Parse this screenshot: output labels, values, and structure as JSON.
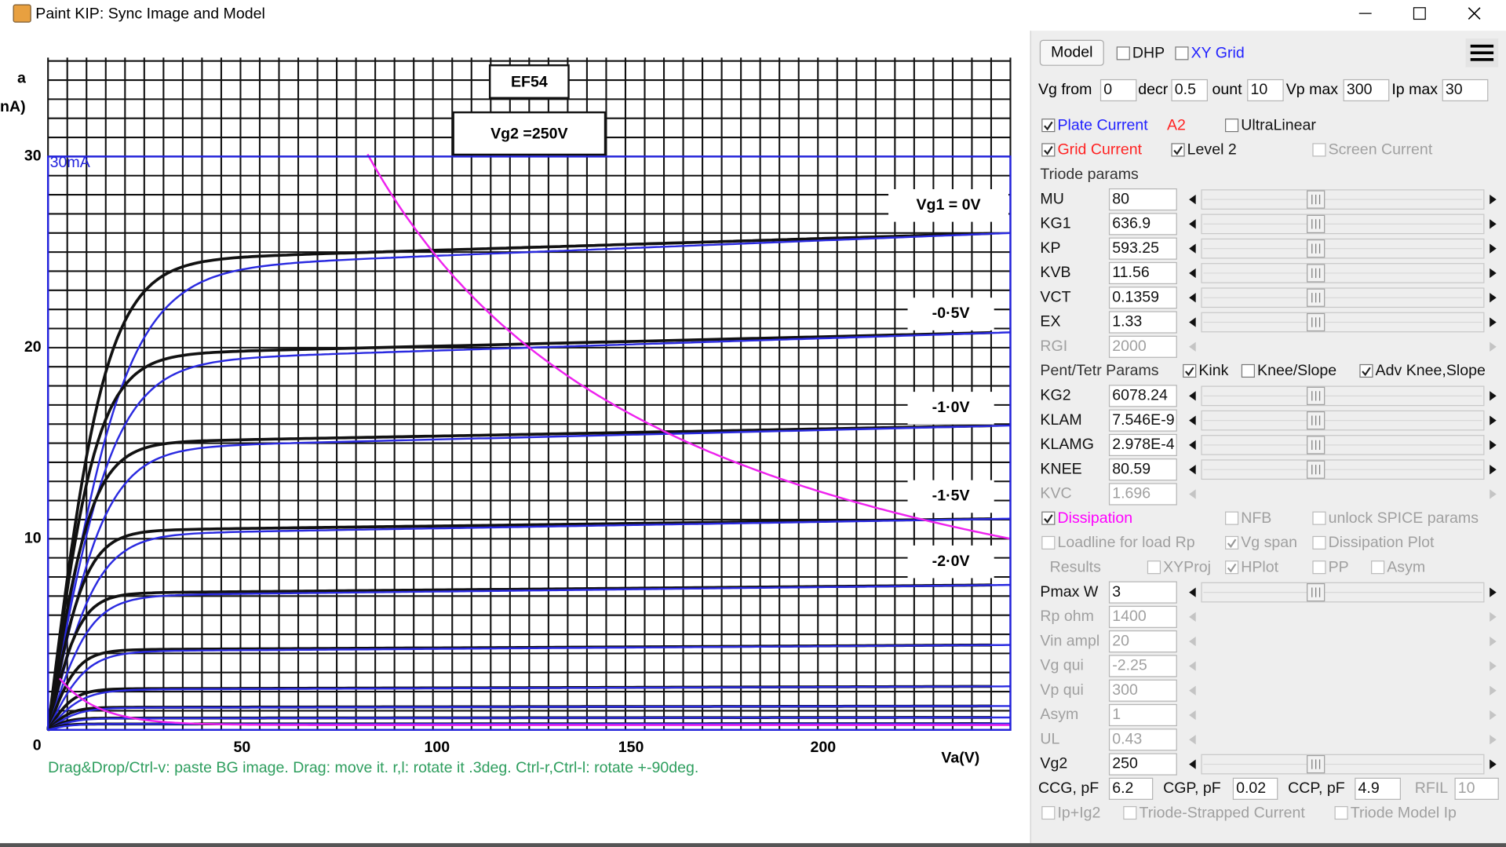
{
  "window": {
    "title": "Paint KIP: Sync Image and Model"
  },
  "image": {
    "tube": "EF54",
    "screen_voltage": "Vg2 =250V",
    "curve_labels": [
      "Vg1 = 0V",
      "-0·5V",
      "-1·0V",
      "-1·5V",
      "-2·0V"
    ],
    "y_axis_title": [
      "a",
      "nA)"
    ],
    "y_tick_labels": [
      "30",
      "20",
      "10",
      "0"
    ],
    "x_tick_labels": [
      "50",
      "100",
      "150",
      "200"
    ],
    "x_axis_title": "Va(V)"
  },
  "overlay": {
    "scale_label": "30mA"
  },
  "hint": "Drag&Drop/Ctrl-v: paste BG image. Drag: move it. r,l: rotate it .3deg. Ctrl-r,Ctrl-l: rotate +-90deg.",
  "panel": {
    "toolbar": {
      "model": "Model",
      "checks": [
        {
          "label": "DHP",
          "checked": false
        },
        {
          "label": "XY Grid",
          "checked": false,
          "color": "#2222ff"
        }
      ]
    },
    "range": [
      {
        "label": "Vg from",
        "value": "0"
      },
      {
        "label": "decr",
        "value": "0.5"
      },
      {
        "label": "ount",
        "value": "10"
      },
      {
        "label": "Vp max",
        "value": "300"
      },
      {
        "label": "Ip max",
        "value": "30"
      }
    ],
    "rows": [
      {
        "checks": [
          {
            "label": "Plate Current",
            "checked": true,
            "color": "#2222ff"
          },
          {
            "label": "A2",
            "color": "#ff2222"
          },
          {
            "label": "UltraLinear",
            "checked": false
          }
        ]
      },
      {
        "checks": [
          {
            "label": "Grid Current",
            "checked": true,
            "color": "#ff2222"
          },
          {
            "label": "Level 2",
            "checked": true
          },
          {
            "label": "Screen Current",
            "checked": false,
            "enabled": false
          }
        ]
      },
      {
        "heading": "Triode params"
      },
      {
        "param": "MU",
        "value": "80"
      },
      {
        "param": "KG1",
        "value": "636.9"
      },
      {
        "param": "KP",
        "value": "593.25"
      },
      {
        "param": "KVB",
        "value": "11.56"
      },
      {
        "param": "VCT",
        "value": "0.1359"
      },
      {
        "param": "EX",
        "value": "1.33"
      },
      {
        "param": "RGI",
        "value": "2000",
        "enabled": false
      },
      {
        "heading": "Pent/Tetr Params",
        "checks": [
          {
            "label": "Kink",
            "checked": true
          },
          {
            "label": "Knee/Slope",
            "checked": false
          },
          {
            "label": "Adv Knee,Slope",
            "checked": true
          }
        ]
      },
      {
        "param": "KG2",
        "value": "6078.24"
      },
      {
        "param": "KLAM",
        "value": "7.546E-9"
      },
      {
        "param": "KLAMG",
        "value": "2.978E-4"
      },
      {
        "param": "KNEE",
        "value": "80.59"
      },
      {
        "param": "KVC",
        "value": "1.696",
        "enabled": false
      },
      {
        "checks": [
          {
            "label": "Dissipation",
            "checked": true,
            "color": "#ff00ff"
          },
          {
            "label": "NFB",
            "checked": false,
            "enabled": false
          },
          {
            "label": "unlock SPICE params",
            "checked": false,
            "enabled": false
          }
        ]
      },
      {
        "checks": [
          {
            "label": "Loadline for load Rp",
            "checked": false,
            "enabled": false
          },
          {
            "label": "Vg span",
            "checked": true,
            "enabled": false
          },
          {
            "label": "Dissipation Plot",
            "checked": false,
            "enabled": false
          }
        ]
      },
      {
        "heading": "Results",
        "enabled": false,
        "checks": [
          {
            "label": "XYProj",
            "checked": false,
            "enabled": false
          },
          {
            "label": "HPlot",
            "checked": true,
            "enabled": false
          },
          {
            "label": "PP",
            "checked": false,
            "enabled": false
          },
          {
            "label": "Asym",
            "checked": false,
            "enabled": false
          }
        ]
      },
      {
        "param": "Pmax W",
        "value": "3"
      },
      {
        "param": "Rp ohm",
        "value": "1400",
        "enabled": false
      },
      {
        "param": "Vin ampl",
        "value": "20",
        "enabled": false
      },
      {
        "param": "Vg qui",
        "value": "-2.25",
        "enabled": false
      },
      {
        "param": "Vp qui",
        "value": "300",
        "enabled": false
      },
      {
        "param": "Asym",
        "value": "1",
        "enabled": false
      },
      {
        "param": "UL",
        "value": "0.43",
        "enabled": false
      },
      {
        "param": "Vg2",
        "value": "250"
      },
      {
        "fields": [
          {
            "label": "CCG, pF",
            "value": "6.2"
          },
          {
            "label": "CGP, pF",
            "value": "0.02"
          },
          {
            "label": "CCP, pF",
            "value": "4.9"
          },
          {
            "label": "RFIL",
            "value": "10",
            "enabled": false
          }
        ]
      },
      {
        "checks": [
          {
            "label": "Ip+Ig2",
            "checked": false,
            "enabled": false
          },
          {
            "label": "Triode-Strapped Current",
            "checked": false,
            "enabled": false
          },
          {
            "label": "Triode Model Ip",
            "checked": false,
            "enabled": false
          }
        ]
      }
    ]
  }
}
